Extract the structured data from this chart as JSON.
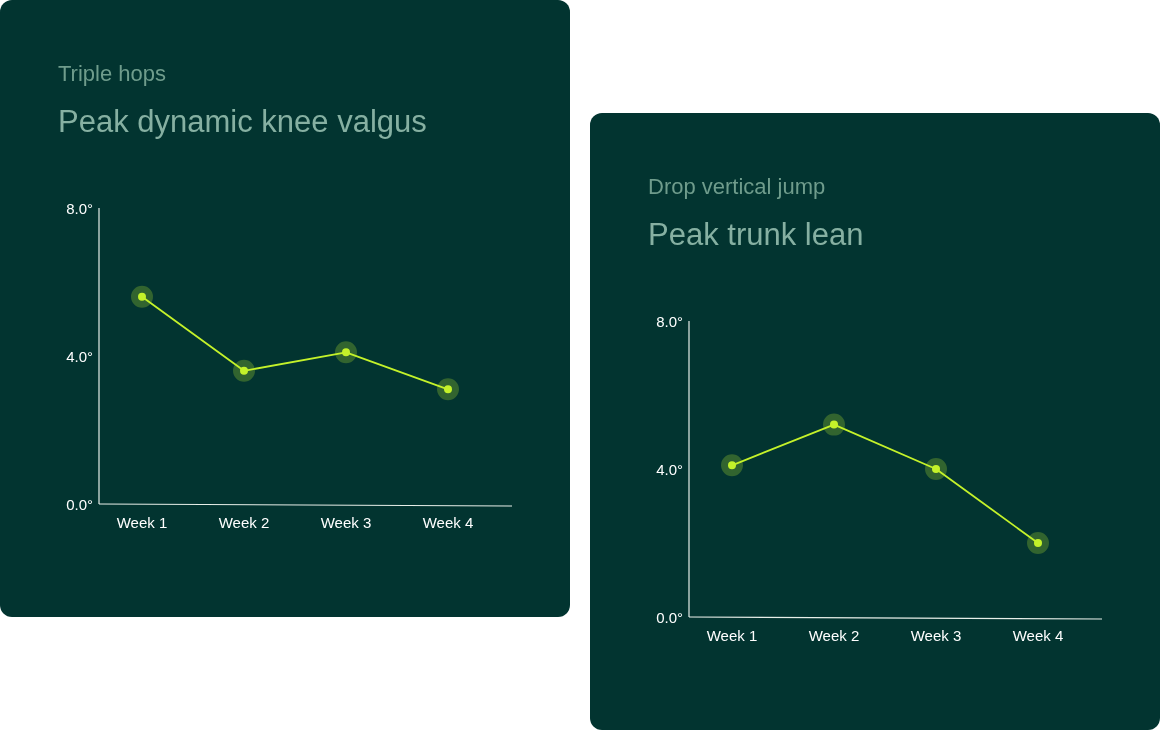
{
  "chart_data": [
    {
      "type": "line",
      "subtitle": "Triple hops",
      "title": "Peak dynamic knee valgus",
      "categories": [
        "Week 1",
        "Week 2",
        "Week 3",
        "Week 4"
      ],
      "series": [
        {
          "color": "#c4f22a",
          "values": [
            5.6,
            3.6,
            4.1,
            3.1
          ]
        }
      ],
      "ylim": [
        0,
        8
      ],
      "yticks": [
        {
          "value": 0,
          "label": "0.0°"
        },
        {
          "value": 4,
          "label": "4.0°"
        },
        {
          "value": 8,
          "label": "8.0°"
        }
      ],
      "marker": "circle",
      "line_style": "solid",
      "grid": false
    },
    {
      "type": "line",
      "subtitle": "Drop vertical jump",
      "title": "Peak trunk lean",
      "categories": [
        "Week 1",
        "Week 2",
        "Week 3",
        "Week 4"
      ],
      "series": [
        {
          "color": "#c4f22a",
          "values": [
            4.1,
            5.2,
            4.0,
            2.0
          ]
        }
      ],
      "ylim": [
        0,
        8
      ],
      "yticks": [
        {
          "value": 0,
          "label": "0.0°"
        },
        {
          "value": 4,
          "label": "4.0°"
        },
        {
          "value": 8,
          "label": "8.0°"
        }
      ],
      "marker": "circle",
      "line_style": "solid",
      "grid": false
    }
  ]
}
